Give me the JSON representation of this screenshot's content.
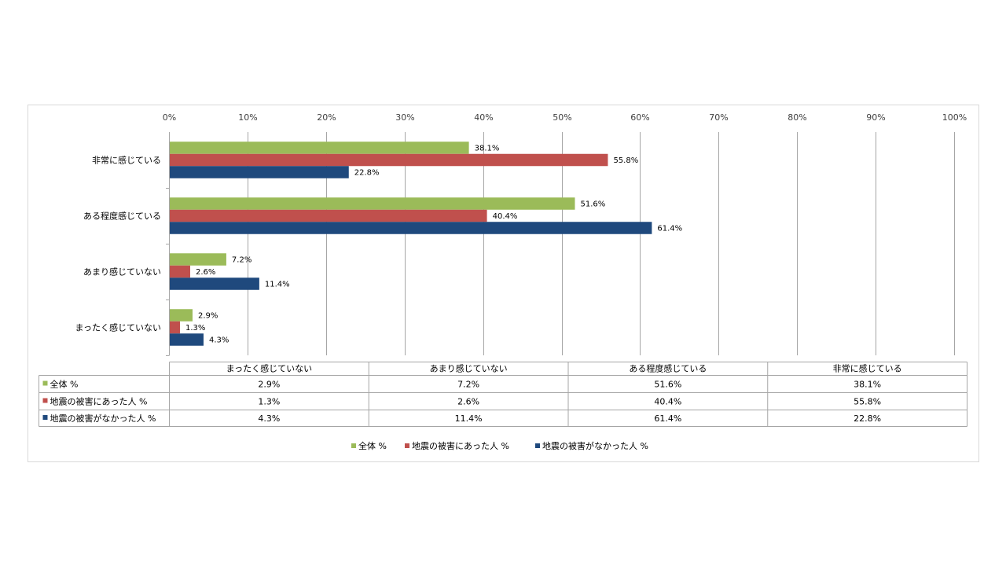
{
  "colors": {
    "series": [
      "#9BBB59",
      "#C0504D",
      "#1F497D"
    ],
    "grid": "#A6A6A6",
    "border": "#D9D9D9",
    "table_border": "#A6A6A6"
  },
  "chart_data": {
    "type": "bar",
    "orientation": "horizontal",
    "x_ticks": [
      "0%",
      "10%",
      "20%",
      "30%",
      "40%",
      "50%",
      "60%",
      "70%",
      "80%",
      "90%",
      "100%"
    ],
    "xlim": [
      0,
      100
    ],
    "grid": true,
    "legend_position": "bottom",
    "categories": [
      "非常に感じている",
      "ある程度感じている",
      "あまり感じていない",
      "まったく感じていない"
    ],
    "series": [
      {
        "name": "全体 %",
        "values": [
          38.1,
          51.6,
          7.2,
          2.9
        ],
        "labels": [
          "38.1%",
          "51.6%",
          "7.2%",
          "2.9%"
        ]
      },
      {
        "name": "地震の被害にあった人 %",
        "values": [
          55.8,
          40.4,
          2.6,
          1.3
        ],
        "labels": [
          "55.8%",
          "40.4%",
          "2.6%",
          "1.3%"
        ]
      },
      {
        "name": "地震の被害がなかった人 %",
        "values": [
          22.8,
          61.4,
          11.4,
          4.3
        ],
        "labels": [
          "22.8%",
          "61.4%",
          "11.4%",
          "4.3%"
        ]
      }
    ],
    "data_table": {
      "columns": [
        "まったく感じていない",
        "あまり感じていない",
        "ある程度感じている",
        "非常に感じている"
      ],
      "rows": [
        {
          "name": "全体 %",
          "cells": [
            "2.9%",
            "7.2%",
            "51.6%",
            "38.1%"
          ]
        },
        {
          "name": "地震の被害にあった人 %",
          "cells": [
            "1.3%",
            "2.6%",
            "40.4%",
            "55.8%"
          ]
        },
        {
          "name": "地震の被害がなかった人 %",
          "cells": [
            "4.3%",
            "11.4%",
            "61.4%",
            "22.8%"
          ]
        }
      ]
    }
  }
}
